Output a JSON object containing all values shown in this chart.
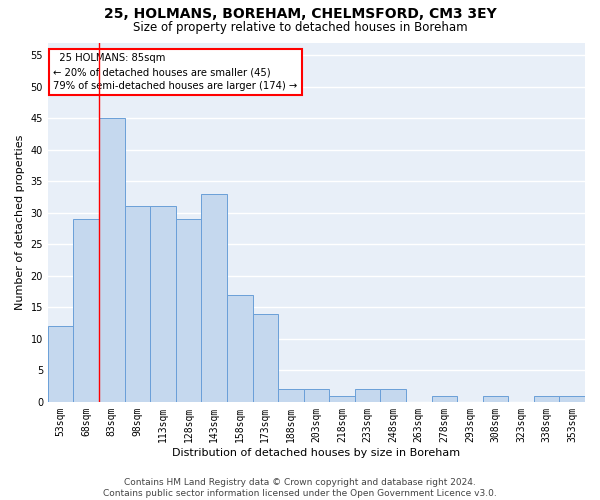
{
  "title1": "25, HOLMANS, BOREHAM, CHELMSFORD, CM3 3EY",
  "title2": "Size of property relative to detached houses in Boreham",
  "xlabel": "Distribution of detached houses by size in Boreham",
  "ylabel": "Number of detached properties",
  "footer1": "Contains HM Land Registry data © Crown copyright and database right 2024.",
  "footer2": "Contains public sector information licensed under the Open Government Licence v3.0.",
  "annotation_title": "25 HOLMANS: 85sqm",
  "annotation_line2": "← 20% of detached houses are smaller (45)",
  "annotation_line3": "79% of semi-detached houses are larger (174) →",
  "bins": [
    "53sqm",
    "68sqm",
    "83sqm",
    "98sqm",
    "113sqm",
    "128sqm",
    "143sqm",
    "158sqm",
    "173sqm",
    "188sqm",
    "203sqm",
    "218sqm",
    "233sqm",
    "248sqm",
    "263sqm",
    "278sqm",
    "293sqm",
    "308sqm",
    "323sqm",
    "338sqm",
    "353sqm"
  ],
  "values": [
    12,
    29,
    45,
    31,
    31,
    29,
    33,
    17,
    14,
    2,
    2,
    1,
    2,
    2,
    0,
    1,
    0,
    1,
    0,
    1,
    1
  ],
  "bar_color": "#c5d8ee",
  "bar_edge_color": "#6a9fd8",
  "red_line_bin_index": 2,
  "ylim": [
    0,
    57
  ],
  "yticks": [
    0,
    5,
    10,
    15,
    20,
    25,
    30,
    35,
    40,
    45,
    50,
    55
  ],
  "background_color": "#e8eff8",
  "grid_color": "#ffffff",
  "title1_fontsize": 10,
  "title2_fontsize": 8.5,
  "axis_label_fontsize": 8,
  "tick_fontsize": 7,
  "footer_fontsize": 6.5
}
